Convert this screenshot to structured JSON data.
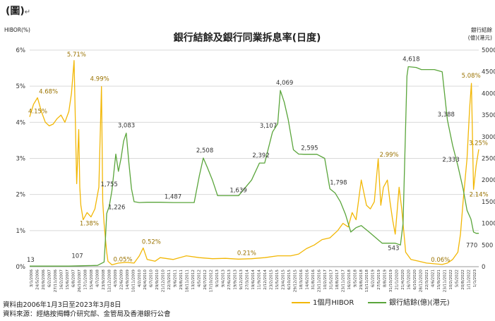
{
  "caption": "(圖)",
  "caption_mark": "↵",
  "footnotes": {
    "period": "資料由2006年1月3日至2023年3月8日",
    "source": "資料來源：經絡按揭轉介研究部、金管局及香港銀行公會"
  },
  "chart_data": {
    "type": "line",
    "title": "銀行結餘及銀行同業拆息率(日度)",
    "ylabel_left": "HIBOR(%)",
    "ylabel_right_line1": "銀行結餘",
    "ylabel_right_line2": "(億)(港元)",
    "ylim_left": [
      0,
      6
    ],
    "ylim_right": [
      0,
      5000
    ],
    "left_ticks": [
      "0%",
      "1%",
      "2%",
      "3%",
      "4%",
      "5%",
      "6%"
    ],
    "right_ticks": [
      "0",
      "500",
      "1000",
      "1500",
      "2000",
      "2500",
      "3000",
      "3500",
      "4000",
      "4500",
      "5000"
    ],
    "grid": true,
    "legend_position": "bottom-right",
    "x_labels": [
      "3/1/2006",
      "24/5/2006",
      "20/9/2006",
      "6/2/2007",
      "27/11/2006",
      "16/2/2007",
      "15/6/2007",
      "6/8/2007",
      "26/10/2007",
      "17/1/2008",
      "15/4/2008",
      "4/7/2008",
      "23/9/2008",
      "12/12/2008",
      "4/3/2009",
      "22/6/2009",
      "14/9/2009",
      "10/11/2009",
      "4/2/2010",
      "26/4/2010",
      "6/7/2010",
      "29/9/2010",
      "21/12/2010",
      "22/3/2011",
      "9/6/2011",
      "29/8/2011",
      "18/11/2011",
      "13/2/2012",
      "4/5/2012",
      "26/7/2012",
      "17/10/2012",
      "9/1/2013",
      "9/4/2013",
      "27/6/2013",
      "19/9/2013",
      "9/12/2013",
      "27/3/2014",
      "19/6/2014",
      "11/9/2014",
      "2/12/2014",
      "23/2/2015",
      "15/5/2015",
      "23/4/2015",
      "6/10/2015",
      "29/12/2015",
      "18/3/2016",
      "14/6/2016",
      "31/8/2016",
      "23/11/2016",
      "10/2/2017",
      "31/5/2017",
      "18/8/2017",
      "23/11/2017",
      "16/2/2018",
      "9/5/2018",
      "29/8/2018",
      "13/11/2018",
      "6/2/2019",
      "27/5/2019",
      "8/8/2019",
      "31/10/2019",
      "21/1/2020",
      "21/4/2020",
      "16/7/2020",
      "6/10/2020",
      "28/12/2020",
      "22/3/2021",
      "4/6/2021",
      "15/9/2021",
      "23/11/2021",
      "10/2/2022",
      "5/5/2022",
      "20/8/2022",
      "1/11/2022",
      "1/1/2023"
    ],
    "xlim": [
      2006.0,
      2023.2
    ],
    "series": [
      {
        "name": "1個月HIBOR",
        "axis": "left",
        "color": "#f2b705",
        "x": [
          2006.0,
          2006.15,
          2006.3,
          2006.45,
          2006.6,
          2006.75,
          2006.9,
          2007.05,
          2007.2,
          2007.35,
          2007.5,
          2007.6,
          2007.7,
          2007.8,
          2007.88,
          2007.92,
          2007.96,
          2008.05,
          2008.2,
          2008.35,
          2008.5,
          2008.65,
          2008.75,
          2008.8,
          2008.85,
          2008.9,
          2008.95,
          2009.0,
          2009.15,
          2009.4,
          2009.7,
          2010.0,
          2010.2,
          2010.35,
          2010.5,
          2010.8,
          2011.0,
          2011.5,
          2012.0,
          2012.5,
          2013.0,
          2013.5,
          2014.0,
          2014.5,
          2015.0,
          2015.5,
          2016.0,
          2016.3,
          2016.6,
          2016.9,
          2017.2,
          2017.5,
          2017.8,
          2018.0,
          2018.2,
          2018.35,
          2018.5,
          2018.7,
          2018.9,
          2019.05,
          2019.2,
          2019.35,
          2019.45,
          2019.55,
          2019.7,
          2019.8,
          2019.9,
          2020.0,
          2020.15,
          2020.25,
          2020.4,
          2020.6,
          2020.9,
          2021.2,
          2021.5,
          2021.8,
          2022.0,
          2022.2,
          2022.4,
          2022.5,
          2022.6,
          2022.75,
          2022.85,
          2022.92,
          2023.0,
          2023.1,
          2023.2
        ],
        "y": [
          4.15,
          4.5,
          4.68,
          4.3,
          4.0,
          3.9,
          3.95,
          4.1,
          4.2,
          4.0,
          4.3,
          4.8,
          5.71,
          2.3,
          3.8,
          2.2,
          1.7,
          1.3,
          1.5,
          1.38,
          1.6,
          2.2,
          4.99,
          1.8,
          1.2,
          0.8,
          0.4,
          0.15,
          0.05,
          0.1,
          0.12,
          0.1,
          0.3,
          0.52,
          0.2,
          0.15,
          0.25,
          0.2,
          0.3,
          0.25,
          0.22,
          0.23,
          0.21,
          0.22,
          0.25,
          0.3,
          0.3,
          0.35,
          0.5,
          0.6,
          0.75,
          0.8,
          1.0,
          1.2,
          1.1,
          1.5,
          1.3,
          2.4,
          1.7,
          1.6,
          1.8,
          2.99,
          1.7,
          2.2,
          2.4,
          1.8,
          1.3,
          0.9,
          2.2,
          1.6,
          0.4,
          0.2,
          0.15,
          0.1,
          0.08,
          0.06,
          0.1,
          0.2,
          0.4,
          0.9,
          1.8,
          3.0,
          4.4,
          5.08,
          2.14,
          2.8,
          3.25
        ]
      },
      {
        "name": "銀行結餘(億)(港元)",
        "axis": "right",
        "color": "#5aa53b",
        "x": [
          2006.0,
          2007.5,
          2008.6,
          2008.85,
          2008.9,
          2008.95,
          2009.05,
          2009.15,
          2009.3,
          2009.4,
          2009.5,
          2009.6,
          2009.7,
          2009.8,
          2009.9,
          2010.0,
          2010.2,
          2010.5,
          2011.0,
          2011.5,
          2012.0,
          2012.3,
          2012.5,
          2012.65,
          2012.8,
          2013.0,
          2013.2,
          2013.5,
          2014.0,
          2014.5,
          2014.8,
          2015.0,
          2015.3,
          2015.5,
          2015.6,
          2015.75,
          2015.9,
          2016.1,
          2016.3,
          2016.5,
          2016.8,
          2017.0,
          2017.3,
          2017.5,
          2017.7,
          2017.9,
          2018.1,
          2018.3,
          2018.5,
          2018.7,
          2019.0,
          2019.5,
          2020.0,
          2020.2,
          2020.3,
          2020.45,
          2020.5,
          2020.8,
          2021.0,
          2021.5,
          2021.8,
          2022.0,
          2022.2,
          2022.4,
          2022.6,
          2022.75,
          2022.9,
          2023.0,
          2023.1,
          2023.2
        ],
        "y": [
          13,
          13,
          30,
          107,
          600,
          1226,
          1400,
          1755,
          2600,
          2200,
          2500,
          2900,
          3083,
          2400,
          1800,
          1500,
          1480,
          1487,
          1487,
          1480,
          1480,
          1480,
          2100,
          2508,
          2300,
          2000,
          1639,
          1639,
          1639,
          2000,
          2392,
          2392,
          3107,
          3300,
          4069,
          3800,
          3400,
          2700,
          2600,
          2595,
          2595,
          2595,
          2500,
          1798,
          1700,
          1500,
          1200,
          800,
          900,
          950,
          800,
          543,
          543,
          500,
          1000,
          4400,
          4618,
          4600,
          4550,
          4550,
          4500,
          3388,
          2800,
          2333,
          1800,
          1300,
          1100,
          800,
          770,
          770
        ]
      }
    ],
    "annotations": [
      {
        "text": "4.15%",
        "series": "1個月HIBOR",
        "x": 2006.0,
        "y": 4.15
      },
      {
        "text": "4.68%",
        "series": "1個月HIBOR",
        "x": 2006.3,
        "y": 4.68
      },
      {
        "text": "5.71%",
        "series": "1個月HIBOR",
        "x": 2007.7,
        "y": 5.71
      },
      {
        "text": "1.38%",
        "series": "1個月HIBOR",
        "x": 2008.35,
        "y": 1.38
      },
      {
        "text": "4.99%",
        "series": "1個月HIBOR",
        "x": 2008.75,
        "y": 4.99
      },
      {
        "text": "0.05%",
        "series": "1個月HIBOR",
        "x": 2009.15,
        "y": 0.05
      },
      {
        "text": "0.52%",
        "series": "1個月HIBOR",
        "x": 2010.35,
        "y": 0.52
      },
      {
        "text": "0.21%",
        "series": "1個月HIBOR",
        "x": 2014.0,
        "y": 0.21
      },
      {
        "text": "2.99%",
        "series": "1個月HIBOR",
        "x": 2019.35,
        "y": 2.99
      },
      {
        "text": "0.06%",
        "series": "1個月HIBOR",
        "x": 2021.8,
        "y": 0.06
      },
      {
        "text": "5.08%",
        "series": "1個月HIBOR",
        "x": 2022.92,
        "y": 5.08
      },
      {
        "text": "2.14%",
        "series": "1個月HIBOR",
        "x": 2023.0,
        "y": 2.14
      },
      {
        "text": "3.25%",
        "series": "1個月HIBOR",
        "x": 2023.2,
        "y": 3.25
      },
      {
        "text": "13",
        "series": "銀行結餘(億)(港元)",
        "x": 2006.0,
        "y": 13
      },
      {
        "text": "107",
        "series": "銀行結餘(億)(港元)",
        "x": 2008.85,
        "y": 107
      },
      {
        "text": "1,226",
        "series": "銀行結餘(億)(港元)",
        "x": 2008.95,
        "y": 1226
      },
      {
        "text": "1,755",
        "series": "銀行結餘(億)(港元)",
        "x": 2009.15,
        "y": 1755
      },
      {
        "text": "3,083",
        "series": "銀行結餘(億)(港元)",
        "x": 2009.7,
        "y": 3083
      },
      {
        "text": "1,487",
        "series": "銀行結餘(億)(港元)",
        "x": 2011.0,
        "y": 1487
      },
      {
        "text": "2,508",
        "series": "銀行結餘(億)(港元)",
        "x": 2012.65,
        "y": 2508
      },
      {
        "text": "1,639",
        "series": "銀行結餘(億)(港元)",
        "x": 2013.5,
        "y": 1639
      },
      {
        "text": "2,392",
        "series": "銀行結餘(億)(港元)",
        "x": 2014.8,
        "y": 2392
      },
      {
        "text": "3,107",
        "series": "銀行結餘(億)(港元)",
        "x": 2015.3,
        "y": 3107
      },
      {
        "text": "4,069",
        "series": "銀行結餘(億)(港元)",
        "x": 2015.6,
        "y": 4069
      },
      {
        "text": "2,595",
        "series": "銀行結餘(億)(港元)",
        "x": 2016.5,
        "y": 2595
      },
      {
        "text": "1,798",
        "series": "銀行結餘(億)(港元)",
        "x": 2017.5,
        "y": 1798
      },
      {
        "text": "543",
        "series": "銀行結餘(億)(港元)",
        "x": 2019.5,
        "y": 543
      },
      {
        "text": "4,618",
        "series": "銀行結餘(億)(港元)",
        "x": 2020.5,
        "y": 4618
      },
      {
        "text": "3,388",
        "series": "銀行結餘(億)(港元)",
        "x": 2022.0,
        "y": 3388
      },
      {
        "text": "2,333",
        "series": "銀行結餘(億)(港元)",
        "x": 2022.4,
        "y": 2333
      },
      {
        "text": "770",
        "series": "銀行結餘(億)(港元)",
        "x": 2023.2,
        "y": 770
      }
    ]
  }
}
